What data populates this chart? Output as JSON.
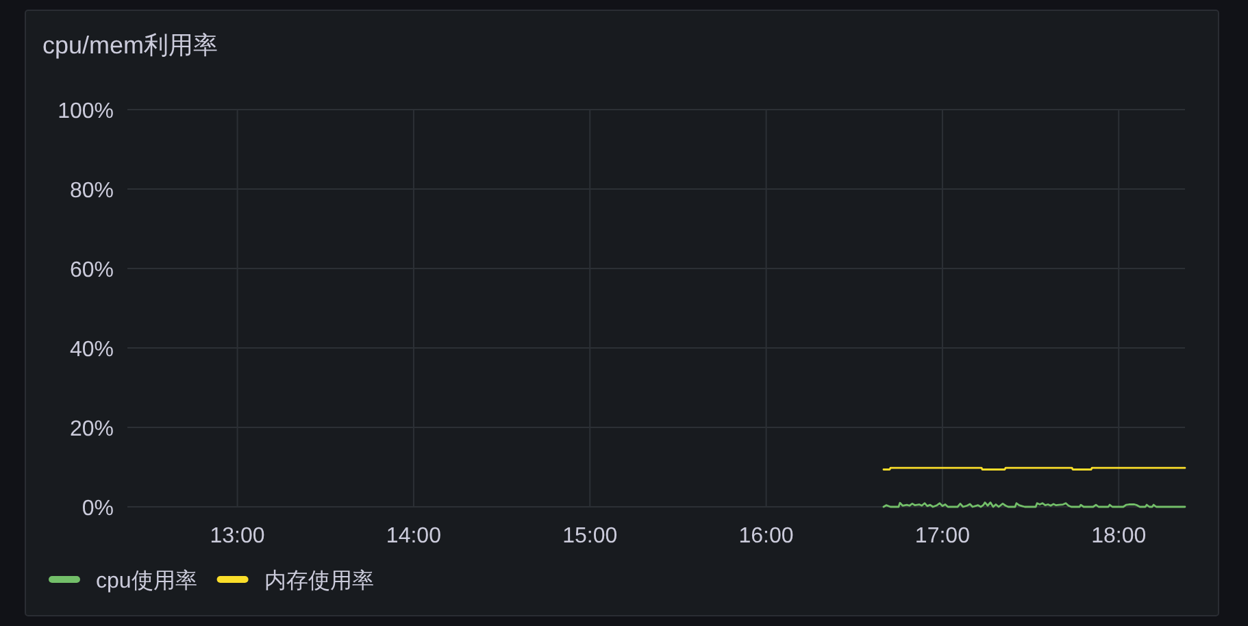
{
  "chart_data": {
    "type": "line",
    "title": "cpu/mem利用率",
    "xlim": [
      12.376,
      18.376
    ],
    "xticks": [
      {
        "value": 13,
        "label": "13:00"
      },
      {
        "value": 14,
        "label": "14:00"
      },
      {
        "value": 15,
        "label": "15:00"
      },
      {
        "value": 16,
        "label": "16:00"
      },
      {
        "value": 17,
        "label": "17:00"
      },
      {
        "value": 18,
        "label": "18:00"
      }
    ],
    "ylim": [
      0,
      100
    ],
    "yticks": [
      {
        "value": 0,
        "label": "0%"
      },
      {
        "value": 20,
        "label": "20%"
      },
      {
        "value": 40,
        "label": "40%"
      },
      {
        "value": 60,
        "label": "60%"
      },
      {
        "value": 80,
        "label": "80%"
      },
      {
        "value": 100,
        "label": "100%"
      }
    ],
    "grid": true,
    "legend": "bottom",
    "series": [
      {
        "name": "cpu使用率",
        "color": "#73bf69",
        "x": [
          16.666,
          16.681,
          16.705,
          16.751,
          16.759,
          16.774,
          16.798,
          16.813,
          16.829,
          16.844,
          16.868,
          16.883,
          16.899,
          16.914,
          16.93,
          16.946,
          16.969,
          16.984,
          17.0,
          17.016,
          17.031,
          17.086,
          17.101,
          17.117,
          17.14,
          17.156,
          17.171,
          17.202,
          17.218,
          17.233,
          17.241,
          17.257,
          17.272,
          17.288,
          17.303,
          17.319,
          17.342,
          17.358,
          17.373,
          17.412,
          17.42,
          17.435,
          17.451,
          17.467,
          17.529,
          17.537,
          17.552,
          17.568,
          17.583,
          17.599,
          17.614,
          17.63,
          17.645,
          17.661,
          17.684,
          17.7,
          17.715,
          17.731,
          17.778,
          17.785,
          17.801,
          17.855,
          17.871,
          17.886,
          17.941,
          17.949,
          17.964,
          18.026,
          18.042,
          18.058,
          18.073,
          18.089,
          18.104,
          18.12,
          18.151,
          18.159,
          18.174,
          18.19,
          18.198,
          18.213,
          18.376
        ],
        "values": [
          0,
          0.4,
          0,
          0,
          1.0,
          0.3,
          0.5,
          0.3,
          0.8,
          0.4,
          0.6,
          0.3,
          0.9,
          0.2,
          0.5,
          0,
          0.4,
          0.9,
          0.2,
          0.6,
          0,
          0,
          0.8,
          0,
          0.3,
          0.7,
          0,
          0.4,
          0,
          0.5,
          1.1,
          0.3,
          1.1,
          0,
          0.6,
          0,
          0.8,
          0.3,
          0,
          0,
          0.9,
          0.4,
          0.2,
          0,
          0,
          0.9,
          0.6,
          0.9,
          0.4,
          0.6,
          0.3,
          0.7,
          0.4,
          0.5,
          0.6,
          0.9,
          0.3,
          0,
          0,
          0.5,
          0,
          0,
          0.5,
          0,
          0,
          0.5,
          0,
          0,
          0.5,
          0.6,
          0.6,
          0.6,
          0.4,
          0,
          0,
          0.5,
          0,
          0,
          0.5,
          0,
          0
        ]
      },
      {
        "name": "内存使用率",
        "color": "#fade2a",
        "x": [
          16.666,
          16.701,
          16.705,
          17.222,
          17.226,
          17.354,
          17.358,
          17.735,
          17.739,
          17.844,
          17.848,
          18.376
        ],
        "values": [
          9.4,
          9.4,
          9.8,
          9.8,
          9.4,
          9.4,
          9.8,
          9.8,
          9.4,
          9.4,
          9.8,
          9.8
        ]
      }
    ]
  }
}
